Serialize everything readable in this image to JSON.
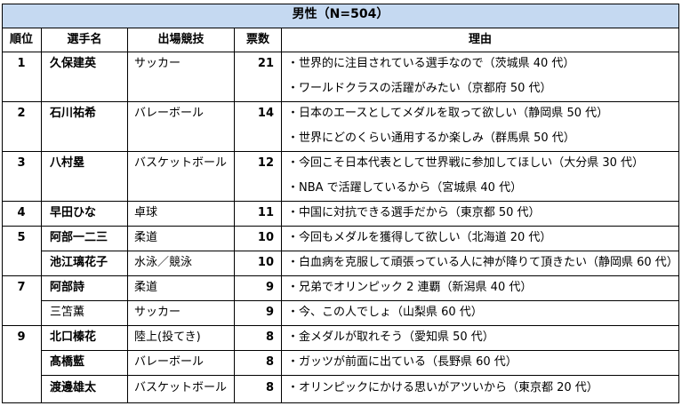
{
  "table": {
    "title": "男性（N=504）",
    "headers": {
      "rank": "順位",
      "athlete": "選手名",
      "sport": "出場競技",
      "votes": "票数",
      "reasons": "理由"
    },
    "rows": [
      {
        "rank": "1",
        "name": "久保建英",
        "sport": "サッカー",
        "votes": "21",
        "reasons": [
          "・世界的に注目されている選手なので（茨城県 40 代）",
          "・ワールドクラスの活躍がみたい（京都府 50 代）"
        ]
      },
      {
        "rank": "2",
        "name": "石川祐希",
        "sport": "バレーボール",
        "votes": "14",
        "reasons": [
          "・日本のエースとしてメダルを取って欲しい（静岡県 50 代）",
          "・世界にどのくらい通用するか楽しみ（群馬県 50 代）"
        ]
      },
      {
        "rank": "3",
        "name": "八村塁",
        "sport": "バスケットボール",
        "votes": "12",
        "reasons": [
          "・今回こそ日本代表として世界戦に参加してほしい（大分県 30 代）",
          "・NBA で活躍しているから（宮城県 40 代）"
        ]
      },
      {
        "rank": "4",
        "name": "早田ひな",
        "sport": "卓球",
        "votes": "11",
        "reasons": [
          "・中国に対抗できる選手だから（東京都 50 代）"
        ]
      },
      {
        "rank": "5",
        "name": "阿部一二三",
        "sport": "柔道",
        "votes": "10",
        "reasons": [
          "・今回もメダルを獲得して欲しい（北海道 20 代）"
        ]
      },
      {
        "rank": "",
        "name": "池江璃花子",
        "sport": "水泳／競泳",
        "votes": "10",
        "reasons": [
          "・白血病を克服して頑張っている人に神が降りて頂きたい（静岡県 60 代）"
        ]
      },
      {
        "rank": "7",
        "name": "阿部詩",
        "sport": "柔道",
        "votes": "9",
        "reasons": [
          "・兄弟でオリンピック 2 連覇（新潟県 40 代）"
        ]
      },
      {
        "rank": "",
        "name": "三笘薫",
        "sport": "サッカー",
        "votes": "9",
        "reasons": [
          "・今、この人でしょ（山梨県 60 代）"
        ]
      },
      {
        "rank": "9",
        "name": "北口榛花",
        "sport": "陸上(投てき)",
        "votes": "8",
        "reasons": [
          "・金メダルが取れそう（愛知県 50 代）"
        ]
      },
      {
        "rank": "",
        "name": "髙橋藍",
        "sport": "バレーボール",
        "votes": "8",
        "reasons": [
          "・ガッツが前面に出ている（長野県 60 代）"
        ]
      },
      {
        "rank": "",
        "name": "渡邊雄太",
        "sport": "バスケットボール",
        "votes": "8",
        "reasons": [
          "・オリンピックにかける思いがアツいから（東京都 20 代）"
        ]
      }
    ]
  },
  "colors": {
    "title_background": "#c5d9f1",
    "border": "#000000",
    "text": "#000000"
  }
}
